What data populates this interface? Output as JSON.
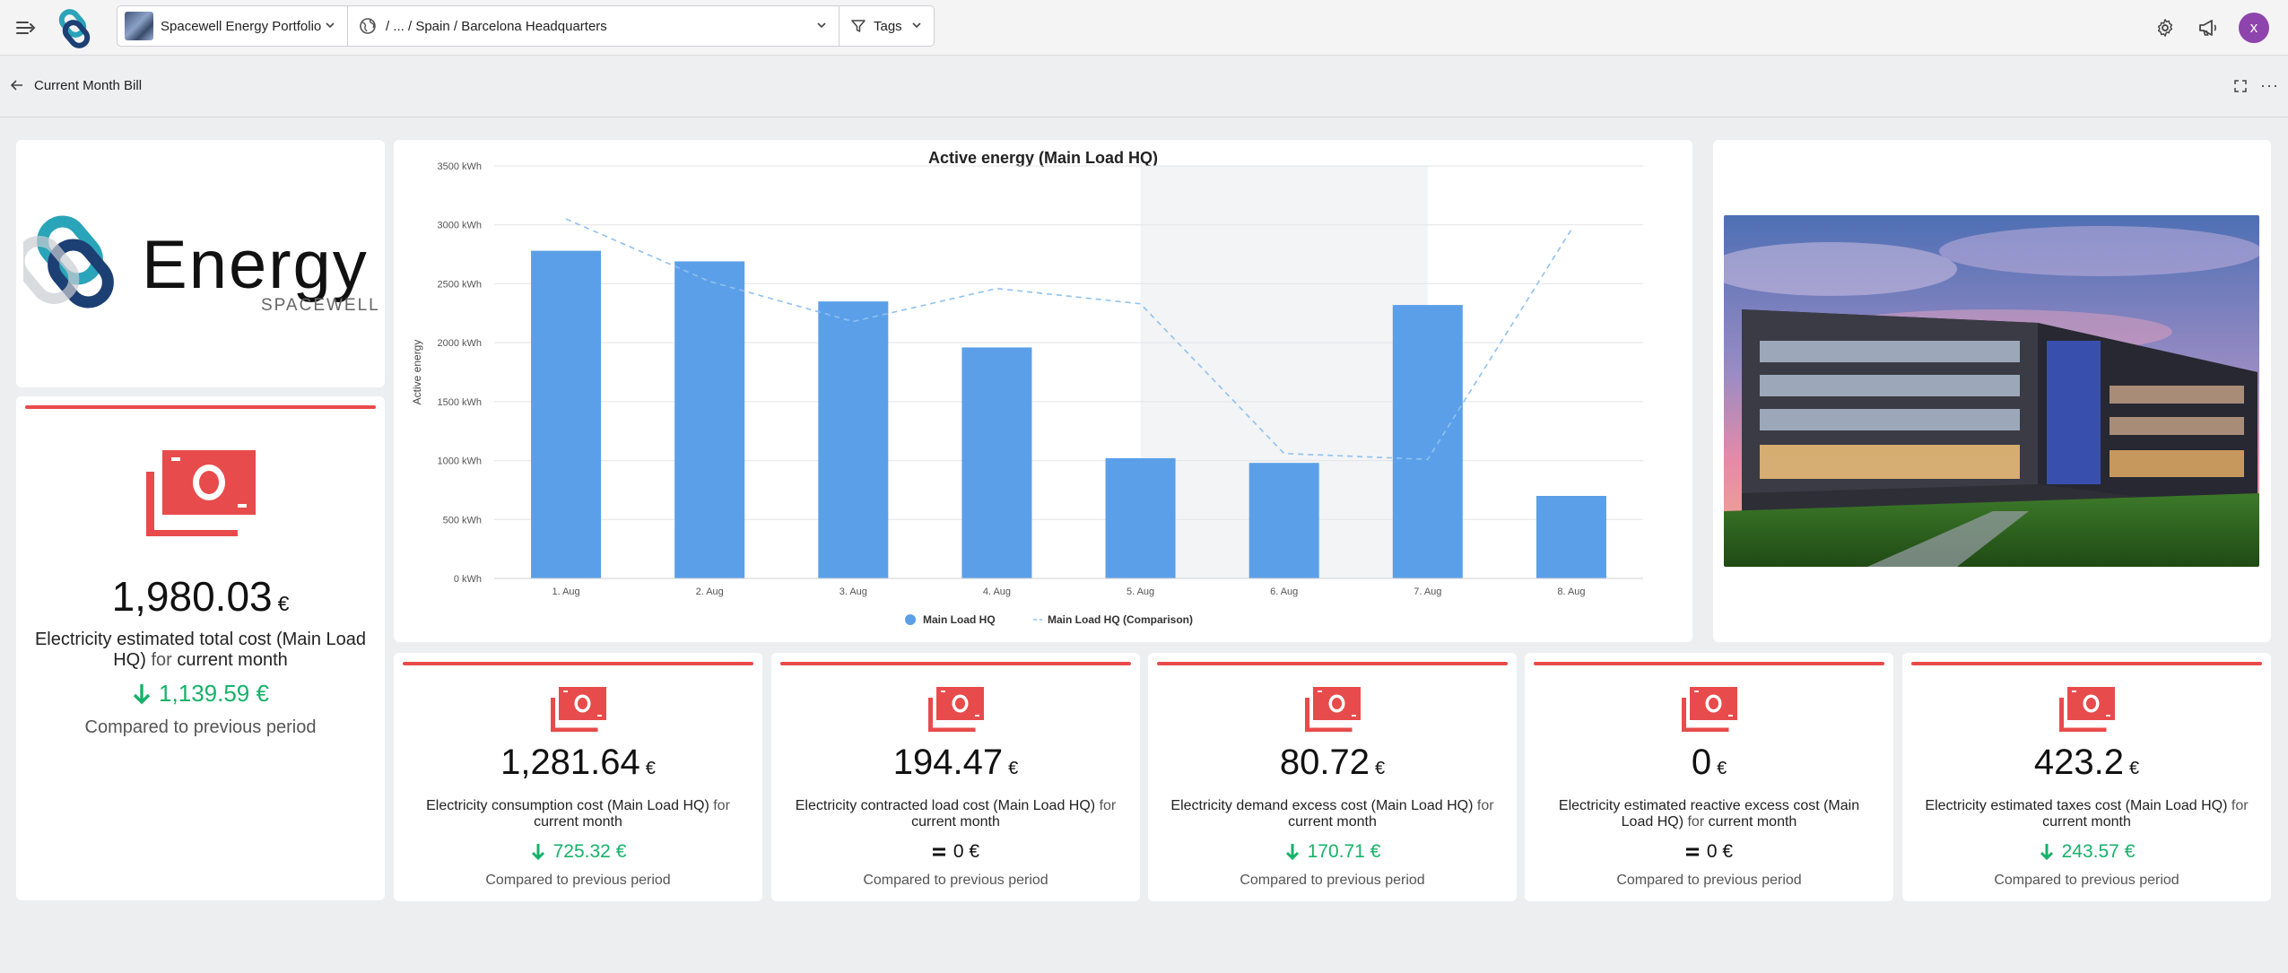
{
  "topbar": {
    "portfolio": "Spacewell Energy Portfolio",
    "path": "/ ... / Spain / Barcelona Headquarters",
    "tags": "Tags",
    "avatar_letter": "x"
  },
  "subbar": {
    "title": "Current Month Bill"
  },
  "logo": {
    "word": "Energy",
    "brand": "SPACEWELL"
  },
  "main_cost": {
    "value": "1,980.03",
    "unit": "€",
    "desc_main": "Electricity estimated total cost (Main Load HQ)",
    "desc_for": "for",
    "desc_period": "current month",
    "delta": "1,139.59 €",
    "compare": "Compared to previous period"
  },
  "kpis": [
    {
      "value": "1,281.64",
      "unit": "€",
      "desc_main": "Electricity consumption cost (Main Load HQ)",
      "desc_for": "for",
      "desc_period": "current month",
      "delta": "725.32 €",
      "trend": "down",
      "compare": "Compared to previous period"
    },
    {
      "value": "194.47",
      "unit": "€",
      "desc_main": "Electricity contracted load cost (Main Load HQ)",
      "desc_for": "for",
      "desc_period": "current month",
      "delta": "0 €",
      "trend": "equal",
      "compare": "Compared to previous period"
    },
    {
      "value": "80.72",
      "unit": "€",
      "desc_main": "Electricity demand excess cost (Main Load HQ)",
      "desc_for": "for",
      "desc_period": "current month",
      "delta": "170.71 €",
      "trend": "down",
      "compare": "Compared to previous period"
    },
    {
      "value": "0",
      "unit": "€",
      "desc_main": "Electricity estimated reactive excess cost (Main Load HQ)",
      "desc_for": "for",
      "desc_period": "current month",
      "delta": "0 €",
      "trend": "equal",
      "compare": "Compared to previous period"
    },
    {
      "value": "423.2",
      "unit": "€",
      "desc_main": "Electricity estimated taxes cost (Main Load HQ)",
      "desc_for": "for",
      "desc_period": "current month",
      "delta": "243.57 €",
      "trend": "down",
      "compare": "Compared to previous period"
    }
  ],
  "colors": {
    "accent_red": "#e84b4b",
    "bar_blue": "#5b9fe8",
    "green": "#17b26a",
    "avatar": "#8e44ad"
  },
  "chart_data": {
    "type": "bar",
    "title": "Active energy (Main Load HQ)",
    "ylabel": "Active energy",
    "xlabel": "",
    "ylim": [
      0,
      3500
    ],
    "yticks": [
      "0 kWh",
      "500 kWh",
      "1000 kWh",
      "1500 kWh",
      "2000 kWh",
      "2500 kWh",
      "3000 kWh",
      "3500 kWh"
    ],
    "categories": [
      "1. Aug",
      "2. Aug",
      "3. Aug",
      "4. Aug",
      "5. Aug",
      "6. Aug",
      "7. Aug",
      "8. Aug"
    ],
    "series": [
      {
        "name": "Main Load HQ",
        "type": "bar",
        "values": [
          2780,
          2690,
          2350,
          1960,
          1020,
          980,
          2320,
          700
        ]
      },
      {
        "name": "Main Load HQ (Comparison)",
        "type": "line-dashed",
        "values": [
          3050,
          2520,
          2180,
          2460,
          2330,
          1060,
          1010,
          2960
        ]
      }
    ],
    "highlight_range": [
      "5. Aug",
      "7. Aug"
    ],
    "grid": true,
    "legend": "bottom-center"
  }
}
